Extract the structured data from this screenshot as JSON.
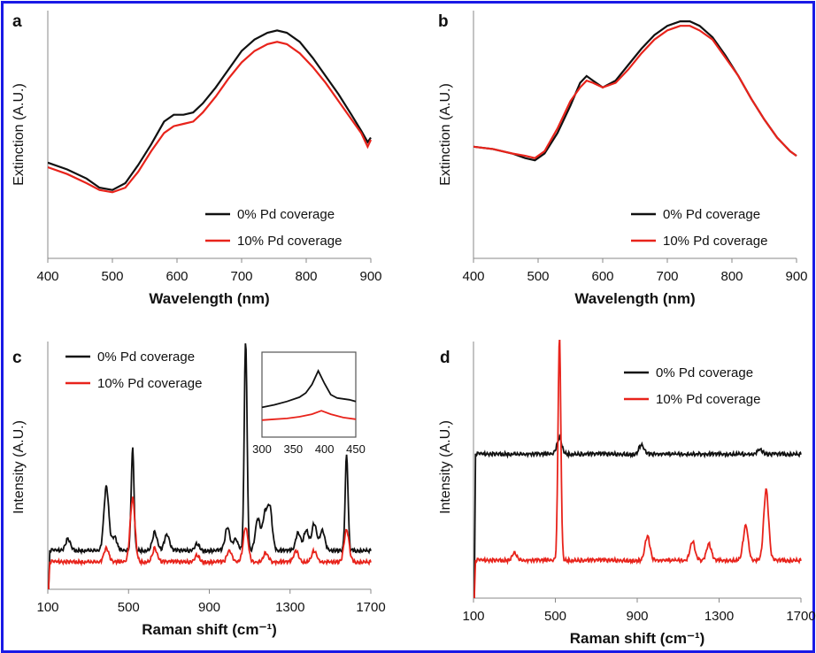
{
  "frame_color": "#1a1ae6",
  "colors": {
    "black": "#111111",
    "red": "#e8231b"
  },
  "chart_data": [
    {
      "panel_label": "a",
      "type": "line",
      "xlabel": "Wavelength (nm)",
      "ylabel": "Extinction (A.U.)",
      "xlim": [
        400,
        900
      ],
      "ylim": [
        0,
        1
      ],
      "xticks": [
        400,
        500,
        600,
        700,
        800,
        900
      ],
      "legend": "bottom-right",
      "series": [
        {
          "name": "0% Pd coverage",
          "color": "#111111",
          "x": [
            400,
            430,
            460,
            480,
            500,
            520,
            540,
            560,
            580,
            595,
            610,
            625,
            640,
            660,
            680,
            700,
            720,
            740,
            755,
            770,
            790,
            810,
            830,
            850,
            870,
            885,
            895,
            900
          ],
          "y": [
            0.42,
            0.39,
            0.35,
            0.31,
            0.3,
            0.33,
            0.41,
            0.5,
            0.6,
            0.63,
            0.63,
            0.64,
            0.68,
            0.75,
            0.83,
            0.91,
            0.96,
            0.99,
            1.0,
            0.99,
            0.95,
            0.88,
            0.8,
            0.72,
            0.63,
            0.56,
            0.51,
            0.53
          ]
        },
        {
          "name": "10% Pd coverage",
          "color": "#e8231b",
          "x": [
            400,
            430,
            460,
            480,
            500,
            520,
            540,
            560,
            580,
            595,
            610,
            625,
            640,
            660,
            680,
            700,
            720,
            740,
            755,
            770,
            790,
            810,
            830,
            850,
            870,
            885,
            895,
            900
          ],
          "y": [
            0.4,
            0.37,
            0.33,
            0.3,
            0.29,
            0.31,
            0.38,
            0.47,
            0.55,
            0.58,
            0.59,
            0.6,
            0.64,
            0.71,
            0.79,
            0.86,
            0.91,
            0.94,
            0.95,
            0.94,
            0.9,
            0.84,
            0.77,
            0.69,
            0.61,
            0.55,
            0.49,
            0.52
          ]
        }
      ]
    },
    {
      "panel_label": "b",
      "type": "line",
      "xlabel": "Wavelength (nm)",
      "ylabel": "Extinction (A.U.)",
      "xlim": [
        400,
        900
      ],
      "ylim": [
        0,
        1
      ],
      "xticks": [
        400,
        500,
        600,
        700,
        800,
        900
      ],
      "legend": "bottom-right",
      "series": [
        {
          "name": "0% Pd coverage",
          "color": "#111111",
          "x": [
            400,
            430,
            460,
            480,
            495,
            510,
            530,
            550,
            565,
            575,
            585,
            600,
            620,
            640,
            660,
            680,
            700,
            720,
            735,
            750,
            770,
            790,
            810,
            830,
            850,
            870,
            890,
            900
          ],
          "y": [
            0.49,
            0.48,
            0.46,
            0.44,
            0.43,
            0.46,
            0.55,
            0.67,
            0.77,
            0.8,
            0.78,
            0.75,
            0.78,
            0.85,
            0.92,
            0.98,
            1.02,
            1.04,
            1.04,
            1.02,
            0.97,
            0.89,
            0.8,
            0.7,
            0.61,
            0.53,
            0.47,
            0.45
          ]
        },
        {
          "name": "10% Pd coverage",
          "color": "#e8231b",
          "x": [
            400,
            430,
            460,
            480,
            495,
            510,
            530,
            550,
            565,
            575,
            585,
            600,
            620,
            640,
            660,
            680,
            700,
            720,
            735,
            750,
            770,
            790,
            810,
            830,
            850,
            870,
            890,
            900
          ],
          "y": [
            0.49,
            0.48,
            0.46,
            0.45,
            0.44,
            0.47,
            0.57,
            0.69,
            0.75,
            0.78,
            0.77,
            0.75,
            0.77,
            0.83,
            0.9,
            0.96,
            1.0,
            1.02,
            1.02,
            1.0,
            0.96,
            0.88,
            0.8,
            0.7,
            0.61,
            0.53,
            0.47,
            0.45
          ]
        }
      ]
    },
    {
      "panel_label": "c",
      "type": "line",
      "xlabel": "Raman shift (cm⁻¹)",
      "ylabel": "Intensity (A.U.)",
      "xlim": [
        100,
        1700
      ],
      "ylim": [
        0,
        1
      ],
      "xticks": [
        100,
        500,
        900,
        1300,
        1700
      ],
      "legend": "top-left",
      "baselines": {
        "0% Pd coverage": 0.17,
        "10% Pd coverage": 0.12
      },
      "peaks": {
        "0% Pd coverage": [
          [
            200,
            0.05
          ],
          [
            390,
            0.28
          ],
          [
            430,
            0.06
          ],
          [
            520,
            0.45
          ],
          [
            630,
            0.08
          ],
          [
            690,
            0.07
          ],
          [
            840,
            0.03
          ],
          [
            990,
            0.1
          ],
          [
            1030,
            0.05
          ],
          [
            1080,
            0.92
          ],
          [
            1140,
            0.14
          ],
          [
            1175,
            0.15
          ],
          [
            1200,
            0.18
          ],
          [
            1340,
            0.08
          ],
          [
            1380,
            0.09
          ],
          [
            1420,
            0.12
          ],
          [
            1460,
            0.09
          ],
          [
            1580,
            0.42
          ]
        ],
        "10% Pd coverage": [
          [
            390,
            0.06
          ],
          [
            520,
            0.28
          ],
          [
            630,
            0.06
          ],
          [
            840,
            0.03
          ],
          [
            1000,
            0.05
          ],
          [
            1080,
            0.15
          ],
          [
            1180,
            0.04
          ],
          [
            1330,
            0.05
          ],
          [
            1420,
            0.05
          ],
          [
            1580,
            0.14
          ]
        ]
      },
      "inset": {
        "xlim": [
          300,
          450
        ],
        "xticks": [
          300,
          350,
          400,
          450
        ],
        "series": [
          {
            "name": "0% Pd coverage",
            "color": "#111111",
            "x": [
              300,
              320,
              340,
              360,
              370,
              380,
              390,
              400,
              410,
              420,
              440,
              450
            ],
            "y": [
              0.35,
              0.38,
              0.42,
              0.47,
              0.52,
              0.62,
              0.78,
              0.63,
              0.5,
              0.46,
              0.44,
              0.42
            ]
          },
          {
            "name": "10% Pd coverage",
            "color": "#e8231b",
            "x": [
              300,
              320,
              340,
              360,
              380,
              395,
              410,
              430,
              450
            ],
            "y": [
              0.2,
              0.21,
              0.22,
              0.24,
              0.27,
              0.31,
              0.27,
              0.23,
              0.21
            ]
          }
        ]
      }
    },
    {
      "panel_label": "d",
      "type": "line",
      "xlabel": "Raman shift (cm⁻¹)",
      "ylabel": "Intensity (A.U.)",
      "xlim": [
        100,
        1700
      ],
      "ylim": [
        0,
        1
      ],
      "xticks": [
        100,
        500,
        900,
        1300,
        1700
      ],
      "legend": "top-right",
      "baselines": {
        "0% Pd coverage": 0.61,
        "10% Pd coverage": 0.16
      },
      "peaks": {
        "0% Pd coverage": [
          [
            520,
            0.07
          ],
          [
            920,
            0.04
          ],
          [
            1500,
            0.02
          ]
        ],
        "10% Pd coverage": [
          [
            300,
            0.03
          ],
          [
            520,
            0.95
          ],
          [
            950,
            0.1
          ],
          [
            1170,
            0.08
          ],
          [
            1250,
            0.07
          ],
          [
            1430,
            0.15
          ],
          [
            1530,
            0.3
          ]
        ]
      }
    }
  ],
  "legend_labels": {
    "zero": "0% Pd coverage",
    "ten": "10% Pd coverage"
  }
}
